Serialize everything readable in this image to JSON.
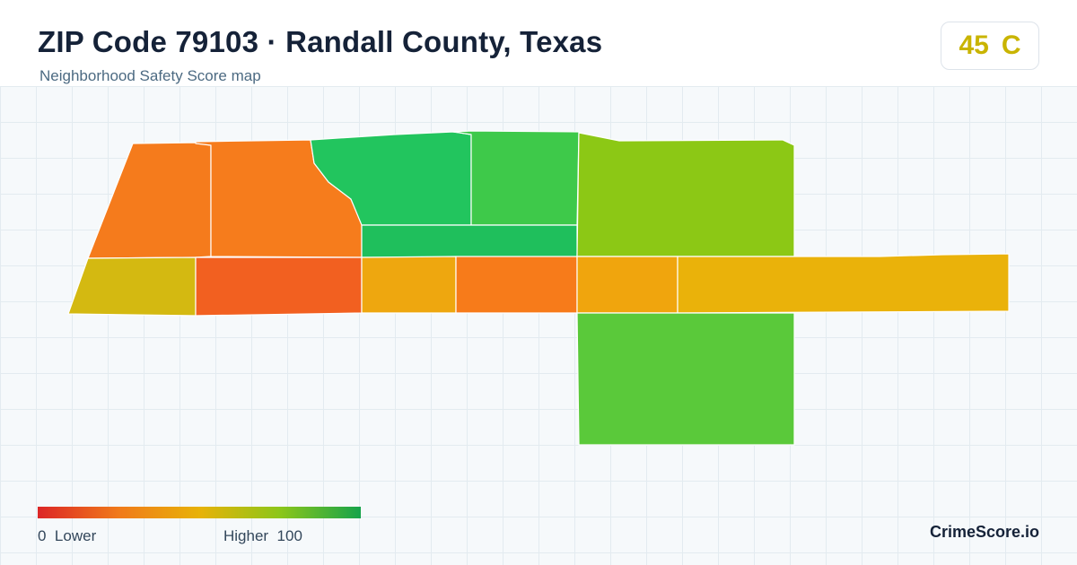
{
  "header": {
    "title": "ZIP Code 79103 · Randall County, Texas",
    "subtitle": "Neighborhood Safety Score map"
  },
  "score_badge": {
    "score": "45",
    "grade": "C",
    "color": "#c9b400"
  },
  "map": {
    "zones": [
      {
        "id": "zone-northwest",
        "color": "#f57b1c"
      },
      {
        "id": "zone-north-central-west",
        "color": "#f67c1c"
      },
      {
        "id": "zone-north-central",
        "color": "#22c55e"
      },
      {
        "id": "zone-north-central-east",
        "color": "#3ec94a"
      },
      {
        "id": "zone-middle-strip",
        "color": "#1fbf5c"
      },
      {
        "id": "zone-northeast",
        "color": "#8cc815"
      },
      {
        "id": "zone-southwest-end",
        "color": "#d4b911"
      },
      {
        "id": "zone-southwest",
        "color": "#f26020"
      },
      {
        "id": "zone-south-central-west",
        "color": "#eea70f"
      },
      {
        "id": "zone-south-central",
        "color": "#f77b1a"
      },
      {
        "id": "zone-south-central-east",
        "color": "#f0a50d"
      },
      {
        "id": "zone-east-strip",
        "color": "#eab20a"
      },
      {
        "id": "zone-southeast",
        "color": "#5ac93a"
      }
    ]
  },
  "legend": {
    "low_value": "0",
    "low_label": "Lower",
    "high_label": "Higher",
    "high_value": "100",
    "low_color": "#dc2626",
    "high_color": "#16a34a"
  },
  "brand": "CrimeScore.io"
}
